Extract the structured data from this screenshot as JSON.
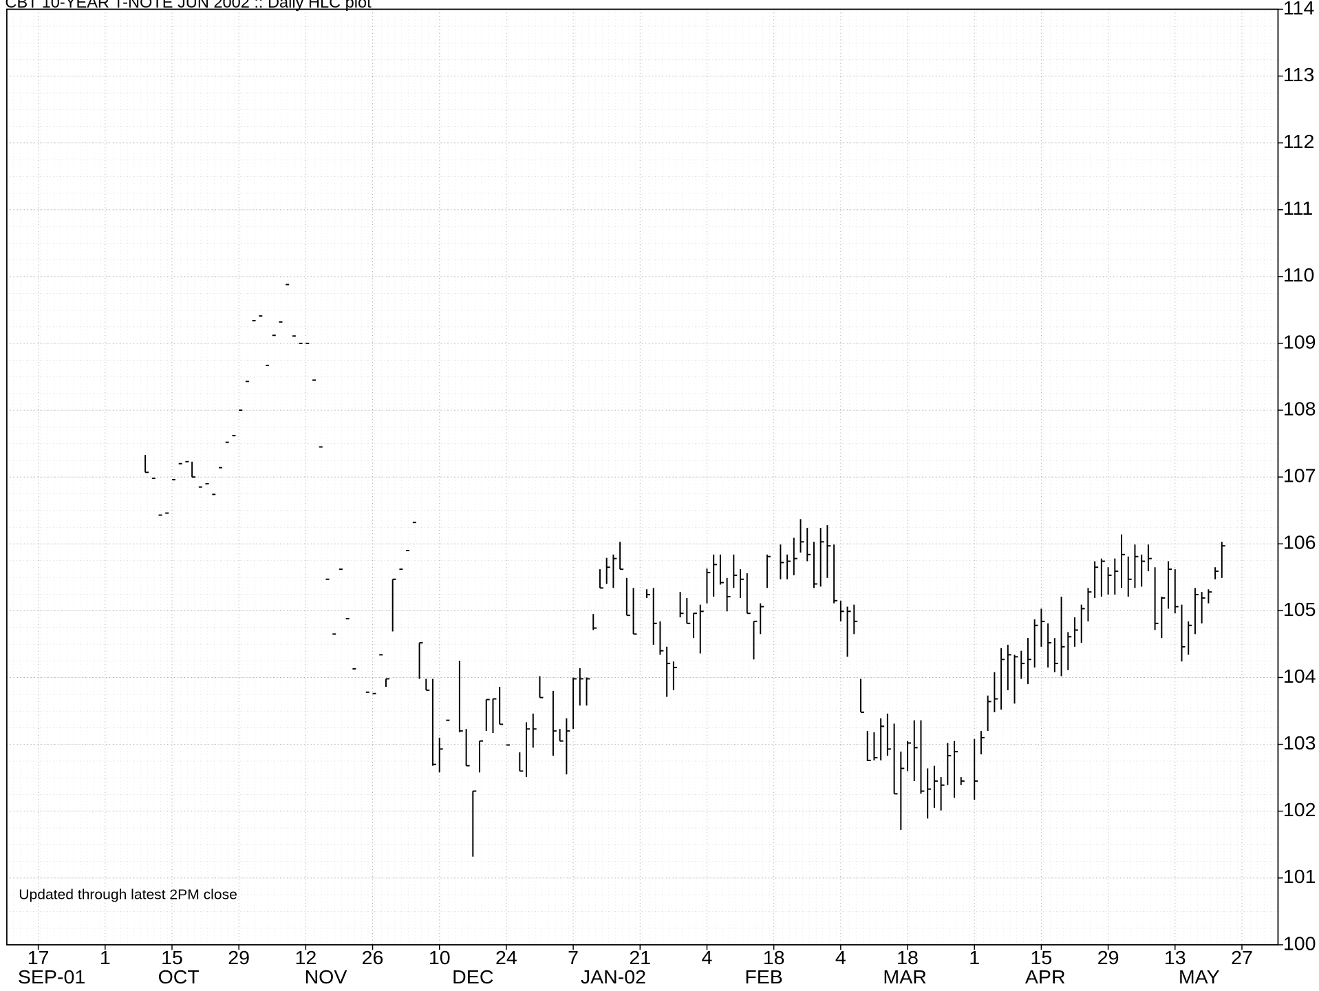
{
  "chart_data": {
    "type": "hlc",
    "title": "CBT 10-YEAR T-NOTE JUN 2002 :: Daily HLC plot",
    "annotation": "Updated through latest 2PM close",
    "ylim": [
      100,
      114
    ],
    "yticks": [
      100,
      101,
      102,
      103,
      104,
      105,
      106,
      107,
      108,
      109,
      110,
      111,
      112,
      113,
      114
    ],
    "xlim": [
      -4.7,
      185.4
    ],
    "xticks": [
      {
        "value": 0,
        "label": "17"
      },
      {
        "value": 10,
        "label": "1"
      },
      {
        "value": 20,
        "label": "15"
      },
      {
        "value": 30,
        "label": "29"
      },
      {
        "value": 40,
        "label": "12"
      },
      {
        "value": 50,
        "label": "26"
      },
      {
        "value": 60,
        "label": "10"
      },
      {
        "value": 70,
        "label": "24"
      },
      {
        "value": 80,
        "label": "7"
      },
      {
        "value": 90,
        "label": "21"
      },
      {
        "value": 100,
        "label": "4"
      },
      {
        "value": 110,
        "label": "18"
      },
      {
        "value": 120,
        "label": "4"
      },
      {
        "value": 130,
        "label": "18"
      },
      {
        "value": 140,
        "label": "1"
      },
      {
        "value": 150,
        "label": "15"
      },
      {
        "value": 160,
        "label": "29"
      },
      {
        "value": 170,
        "label": "13"
      },
      {
        "value": 180,
        "label": "27"
      }
    ],
    "month_labels": [
      {
        "value": 2,
        "label": "SEP-01"
      },
      {
        "value": 21,
        "label": "OCT"
      },
      {
        "value": 43,
        "label": "NOV"
      },
      {
        "value": 65,
        "label": "DEC"
      },
      {
        "value": 86,
        "label": "JAN-02"
      },
      {
        "value": 108.5,
        "label": "FEB"
      },
      {
        "value": 129.6,
        "label": "MAR"
      },
      {
        "value": 150.6,
        "label": "APR"
      },
      {
        "value": 173.6,
        "label": "MAY"
      }
    ],
    "grid": true,
    "color": "#000000",
    "x": [
      16,
      17,
      18,
      19,
      20,
      21,
      22,
      23,
      24,
      25,
      26,
      27,
      28,
      29,
      30,
      31,
      32,
      33,
      34,
      35,
      36,
      37,
      38,
      39,
      40,
      41,
      42,
      43,
      44,
      45,
      46,
      47,
      49,
      50,
      51,
      52,
      53,
      54,
      55,
      56,
      57,
      58,
      59,
      60,
      61,
      63,
      64,
      65,
      66,
      67,
      68,
      69,
      70,
      72,
      73,
      74,
      75,
      77,
      78,
      79,
      80,
      81,
      82,
      83,
      84,
      85,
      86,
      87,
      88,
      89,
      91,
      92,
      93,
      94,
      95,
      96,
      97,
      98,
      99,
      100,
      101,
      102,
      103,
      104,
      105,
      106,
      107,
      108,
      109,
      111,
      112,
      113,
      114,
      115,
      116,
      117,
      118,
      119,
      120,
      121,
      122,
      123,
      124,
      125,
      126,
      127,
      128,
      129,
      130,
      131,
      132,
      133,
      134,
      135,
      136,
      137,
      138,
      140,
      141,
      142,
      143,
      144,
      145,
      146,
      147,
      148,
      149,
      150,
      151,
      152,
      153,
      154,
      155,
      156,
      157,
      158,
      159,
      160,
      161,
      162,
      163,
      164,
      165,
      166,
      167,
      168,
      169,
      170,
      171,
      172,
      173,
      174,
      175,
      176,
      177
    ],
    "high": [
      107.33,
      106.98,
      106.43,
      106.46,
      106.96,
      107.2,
      107.23,
      107.23,
      106.85,
      106.9,
      106.74,
      107.14,
      107.52,
      107.62,
      108.0,
      108.43,
      109.34,
      109.41,
      108.67,
      109.12,
      109.32,
      109.88,
      109.11,
      109.0,
      109.0,
      108.45,
      107.45,
      105.47,
      104.65,
      105.62,
      104.88,
      104.13,
      103.78,
      103.76,
      104.34,
      103.98,
      105.47,
      105.62,
      105.9,
      106.32,
      104.52,
      103.98,
      103.98,
      103.1,
      103.36,
      104.25,
      103.23,
      102.3,
      103.05,
      103.67,
      103.68,
      103.86,
      102.99,
      102.88,
      103.33,
      103.46,
      104.02,
      103.8,
      103.23,
      103.39,
      104.0,
      104.14,
      104.0,
      104.95,
      105.62,
      105.79,
      105.84,
      106.03,
      105.49,
      105.34,
      105.32,
      105.34,
      104.84,
      104.46,
      104.24,
      105.28,
      105.19,
      104.96,
      105.09,
      105.63,
      105.84,
      105.84,
      105.49,
      105.84,
      105.62,
      105.56,
      104.84,
      105.11,
      105.84,
      105.99,
      105.84,
      106.09,
      106.37,
      106.24,
      106.03,
      106.24,
      106.28,
      105.99,
      105.15,
      105.06,
      105.09,
      103.98,
      103.2,
      103.18,
      103.39,
      103.46,
      103.31,
      102.89,
      103.05,
      103.36,
      103.36,
      102.64,
      102.68,
      102.51,
      103.02,
      103.05,
      102.51,
      103.08,
      103.2,
      103.73,
      104.08,
      104.44,
      104.49,
      104.34,
      104.4,
      104.59,
      104.87,
      105.03,
      104.81,
      104.59,
      105.21,
      104.68,
      104.9,
      105.09,
      105.34,
      105.74,
      105.78,
      105.65,
      105.78,
      106.14,
      105.81,
      105.99,
      105.84,
      105.99,
      105.65,
      105.21,
      105.74,
      105.62,
      105.09,
      104.84,
      105.34,
      105.28,
      105.32,
      105.65,
      106.03
    ],
    "low": [
      107.07,
      106.98,
      106.43,
      106.46,
      106.96,
      107.2,
      107.23,
      107.0,
      106.85,
      106.9,
      106.74,
      107.14,
      107.52,
      107.62,
      108.0,
      108.43,
      109.34,
      109.41,
      108.67,
      109.12,
      109.32,
      109.88,
      109.11,
      109.0,
      109.0,
      108.45,
      107.45,
      105.47,
      104.65,
      105.62,
      104.88,
      104.13,
      103.78,
      103.76,
      104.34,
      103.86,
      104.69,
      105.62,
      105.9,
      106.32,
      103.98,
      103.81,
      102.68,
      102.58,
      103.36,
      103.18,
      102.68,
      101.32,
      102.58,
      103.2,
      103.17,
      103.3,
      102.99,
      102.6,
      102.51,
      102.95,
      103.7,
      102.83,
      103.05,
      102.55,
      103.23,
      103.58,
      103.58,
      104.71,
      105.34,
      105.4,
      105.34,
      105.62,
      104.93,
      104.65,
      105.19,
      104.49,
      104.34,
      103.71,
      103.81,
      104.9,
      104.81,
      104.59,
      104.36,
      105.11,
      105.21,
      105.39,
      104.99,
      105.34,
      105.19,
      104.96,
      104.27,
      104.65,
      105.34,
      105.47,
      105.47,
      105.53,
      105.87,
      105.74,
      105.34,
      105.36,
      105.49,
      105.11,
      104.84,
      104.31,
      104.65,
      103.48,
      102.75,
      102.76,
      102.76,
      102.83,
      102.26,
      101.72,
      102.6,
      102.45,
      102.26,
      101.89,
      102.05,
      102.01,
      102.39,
      102.2,
      102.39,
      102.17,
      102.85,
      103.2,
      103.48,
      103.52,
      103.81,
      103.61,
      103.98,
      103.9,
      104.15,
      104.46,
      104.15,
      104.08,
      104.02,
      104.11,
      104.46,
      104.52,
      104.84,
      105.19,
      105.21,
      105.24,
      105.24,
      105.34,
      105.21,
      105.34,
      105.36,
      105.59,
      104.71,
      104.59,
      105.03,
      104.96,
      104.24,
      104.34,
      104.65,
      104.81,
      105.11,
      105.47,
      105.49
    ],
    "close": [
      107.07,
      106.98,
      106.43,
      106.46,
      106.96,
      107.2,
      107.23,
      107.0,
      106.85,
      106.9,
      106.74,
      107.14,
      107.52,
      107.62,
      108.0,
      108.43,
      109.34,
      109.41,
      108.67,
      109.12,
      109.32,
      109.88,
      109.11,
      109.0,
      109.0,
      108.45,
      107.45,
      105.47,
      104.65,
      105.62,
      104.88,
      104.13,
      103.78,
      103.76,
      104.34,
      103.98,
      105.47,
      105.62,
      105.9,
      106.32,
      104.52,
      103.81,
      102.7,
      102.93,
      103.36,
      103.2,
      102.68,
      102.3,
      103.05,
      103.67,
      103.68,
      103.3,
      102.99,
      102.6,
      103.23,
      103.23,
      103.7,
      103.2,
      103.05,
      103.2,
      103.98,
      103.98,
      103.98,
      104.74,
      105.34,
      105.65,
      105.78,
      105.62,
      104.93,
      104.65,
      105.24,
      104.81,
      104.4,
      104.21,
      104.15,
      104.96,
      104.81,
      104.96,
      104.99,
      105.57,
      105.69,
      105.42,
      105.21,
      105.53,
      105.47,
      104.96,
      104.84,
      105.06,
      105.81,
      105.72,
      105.74,
      105.78,
      106.03,
      105.84,
      105.4,
      106.03,
      105.97,
      105.15,
      104.99,
      104.99,
      104.84,
      103.48,
      102.76,
      102.8,
      103.27,
      102.93,
      102.26,
      102.64,
      103.02,
      102.95,
      102.3,
      102.33,
      102.45,
      102.39,
      102.83,
      102.89,
      102.45,
      102.45,
      103.1,
      103.64,
      103.68,
      104.27,
      104.34,
      104.31,
      104.21,
      104.27,
      104.78,
      104.84,
      104.52,
      104.21,
      104.46,
      104.61,
      104.71,
      105.03,
      105.28,
      105.65,
      105.74,
      105.53,
      105.59,
      105.84,
      105.47,
      105.81,
      105.74,
      105.78,
      104.81,
      105.19,
      105.62,
      105.06,
      104.46,
      104.78,
      105.24,
      105.19,
      105.28,
      105.59,
      105.97
    ]
  }
}
